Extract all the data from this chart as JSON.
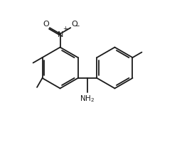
{
  "bg_color": "#ffffff",
  "line_color": "#1a1a1a",
  "text_color": "#1a1a1a",
  "line_width": 1.3,
  "figsize": [
    2.49,
    2.01
  ],
  "dpi": 100,
  "xlim": [
    0.0,
    1.0
  ],
  "ylim": [
    0.0,
    1.0
  ]
}
